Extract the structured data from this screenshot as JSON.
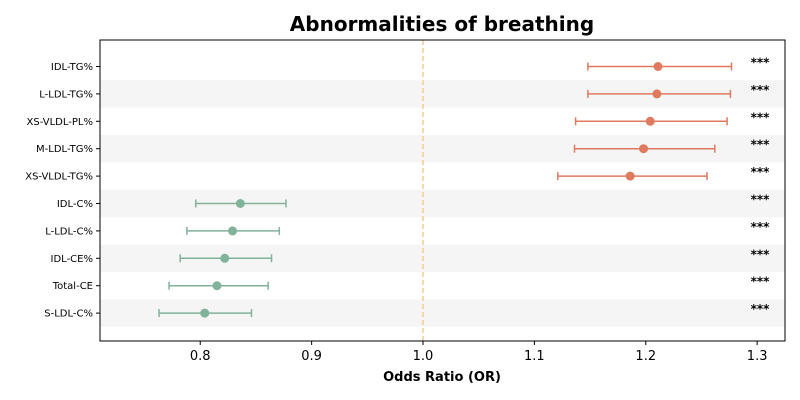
{
  "chart_data": {
    "type": "forest",
    "title": "Abnormalities of breathing",
    "xlabel": "Odds Ratio (OR)",
    "xlim": [
      0.71,
      1.325
    ],
    "xticks": [
      0.8,
      0.9,
      1.0,
      1.1,
      1.2,
      1.3
    ],
    "xtick_labels": [
      "0.8",
      "0.9",
      "1.0",
      "1.1",
      "1.2",
      "1.3"
    ],
    "reference_line": 1.0,
    "colors": {
      "positive": "#e07a5f",
      "negative": "#81b29a",
      "reference": "#f2cc8f",
      "stripe": "#f5f5f5"
    },
    "rows": [
      {
        "label": "IDL-TG%",
        "or": 1.211,
        "lo": 1.148,
        "hi": 1.277,
        "sig": "***"
      },
      {
        "label": "L-LDL-TG%",
        "or": 1.21,
        "lo": 1.148,
        "hi": 1.276,
        "sig": "***"
      },
      {
        "label": "XS-VLDL-PL%",
        "or": 1.204,
        "lo": 1.137,
        "hi": 1.273,
        "sig": "***"
      },
      {
        "label": "M-LDL-TG%",
        "or": 1.198,
        "lo": 1.136,
        "hi": 1.262,
        "sig": "***"
      },
      {
        "label": "XS-VLDL-TG%",
        "or": 1.186,
        "lo": 1.121,
        "hi": 1.255,
        "sig": "***"
      },
      {
        "label": "IDL-C%",
        "or": 0.836,
        "lo": 0.796,
        "hi": 0.877,
        "sig": "***"
      },
      {
        "label": "L-LDL-C%",
        "or": 0.829,
        "lo": 0.788,
        "hi": 0.871,
        "sig": "***"
      },
      {
        "label": "IDL-CE%",
        "or": 0.822,
        "lo": 0.782,
        "hi": 0.864,
        "sig": "***"
      },
      {
        "label": "Total-CE",
        "or": 0.815,
        "lo": 0.772,
        "hi": 0.861,
        "sig": "***"
      },
      {
        "label": "S-LDL-C%",
        "or": 0.804,
        "lo": 0.763,
        "hi": 0.846,
        "sig": "***"
      }
    ]
  }
}
